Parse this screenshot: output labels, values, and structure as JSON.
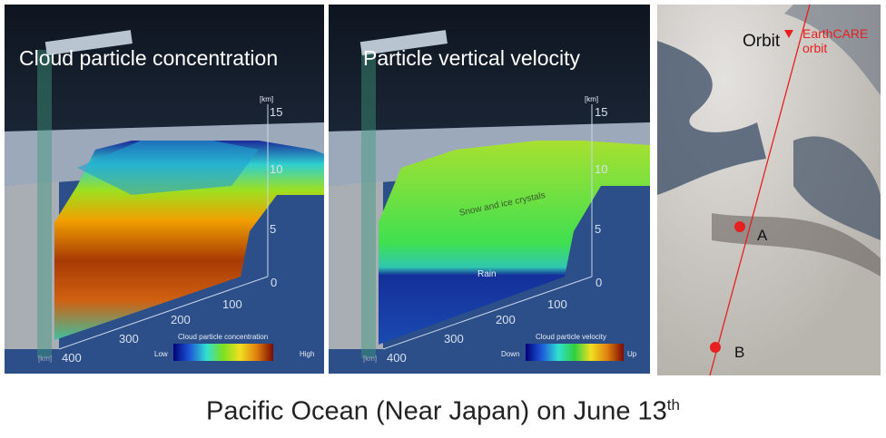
{
  "panels": [
    {
      "title": "Cloud particle concentration",
      "z_axis": {
        "unit": "[km]",
        "ticks": [
          "15",
          "10",
          "5",
          "0"
        ]
      },
      "x_axis": {
        "unit": "[km]",
        "ticks": [
          "100",
          "200",
          "300",
          "400"
        ]
      },
      "colorbar": {
        "title": "Cloud particle concentration",
        "low": "Low",
        "high": "High"
      }
    },
    {
      "title": "Particle vertical velocity",
      "z_axis": {
        "unit": "[km]",
        "ticks": [
          "15",
          "10",
          "5",
          "0"
        ]
      },
      "x_axis": {
        "unit": "[km]",
        "ticks": [
          "100",
          "200",
          "300",
          "400"
        ]
      },
      "colorbar": {
        "title": "Cloud particle velocity",
        "low": "Down",
        "high": "Up"
      },
      "annotations": {
        "upper": "Snow and ice crystals",
        "lower": "Rain"
      }
    }
  ],
  "map": {
    "orbit_label": "Orbit",
    "legend_line1": "EarthCARE",
    "legend_line2": "orbit",
    "point_a": "A",
    "point_b": "B",
    "orbit_color": "#e62020"
  },
  "caption": {
    "text": "Pacific Ocean (Near Japan) on June 13",
    "sup": "th"
  }
}
